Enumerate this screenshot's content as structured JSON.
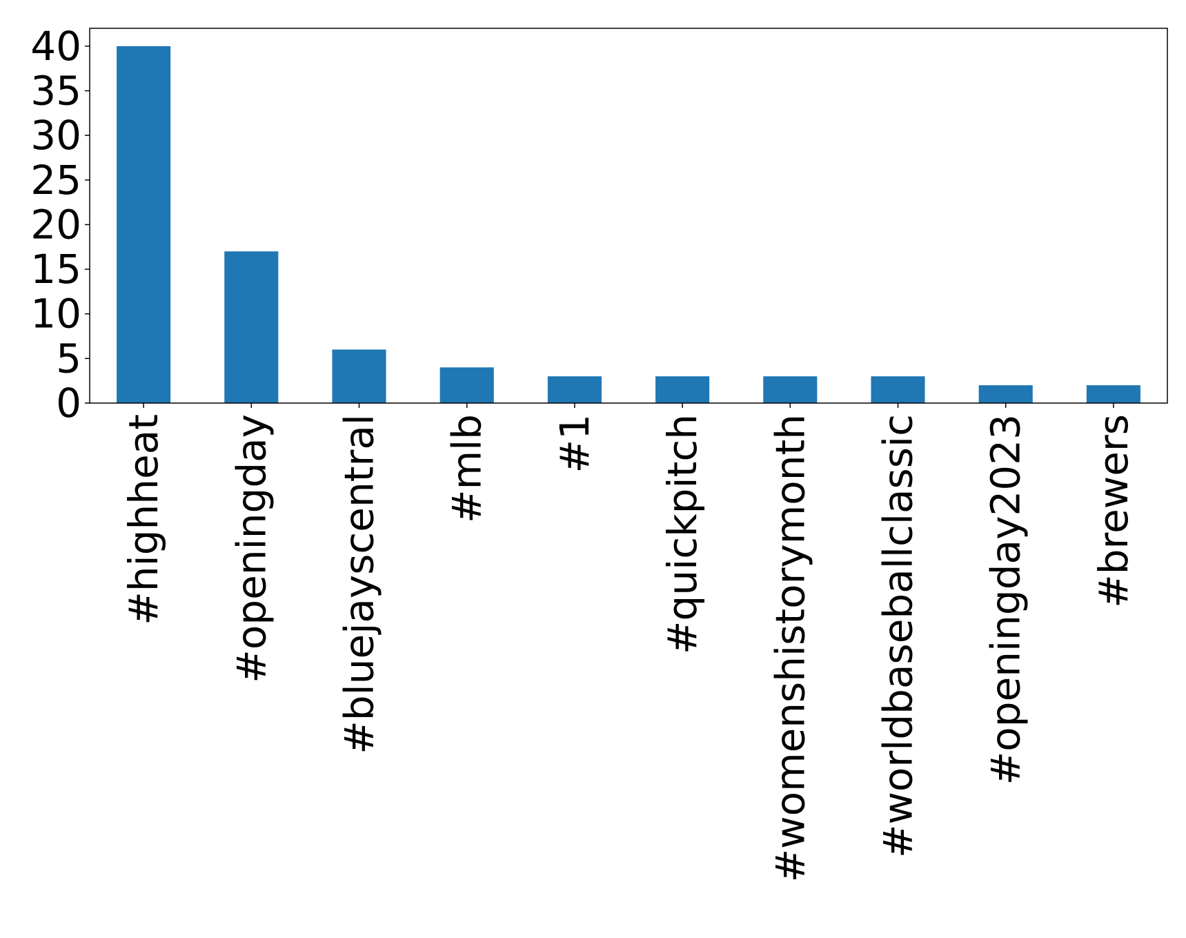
{
  "chart_data": {
    "type": "bar",
    "title": "",
    "xlabel": "",
    "ylabel": "",
    "categories": [
      "#highheat",
      "#openingday",
      "#bluejayscentral",
      "#mlb",
      "#1",
      "#quickpitch",
      "#womenshistorymonth",
      "#worldbaseballclassic",
      "#openingday2023",
      "#brewers"
    ],
    "values": [
      40,
      17,
      6,
      4,
      3,
      3,
      3,
      3,
      2,
      2
    ],
    "ylim": [
      0,
      42
    ],
    "yticks": [
      0,
      5,
      10,
      15,
      20,
      25,
      30,
      35,
      40
    ],
    "grid": false,
    "legend": "none",
    "colors": {
      "bar": "#1f77b4",
      "axis": "#000000",
      "background": "#ffffff"
    }
  }
}
